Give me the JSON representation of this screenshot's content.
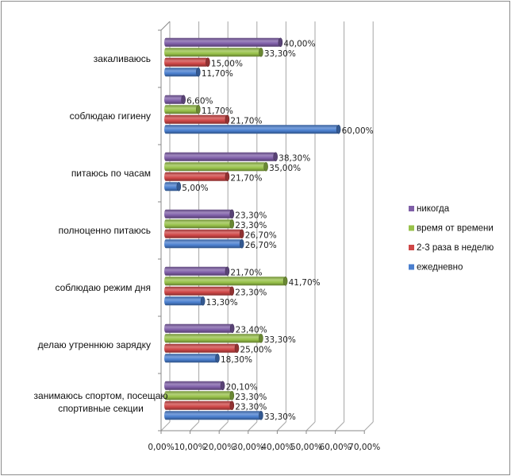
{
  "chart_data": {
    "type": "bar",
    "orientation": "horizontal",
    "style": "3d-cylinder",
    "title": "",
    "xlabel": "",
    "ylabel": "",
    "xlim": [
      0,
      70
    ],
    "x_ticks": [
      0,
      10,
      20,
      30,
      40,
      50,
      60,
      70
    ],
    "x_tick_labels": [
      "0,00%",
      "10,00%",
      "20,00%",
      "30,00%",
      "40,00%",
      "50,00%",
      "60,00%",
      "70,00%"
    ],
    "grid": true,
    "legend_position": "right",
    "categories": [
      "закаливаюсь",
      "соблюдаю гигиену",
      "питаюсь по часам",
      "полноценно питаюсь",
      "соблюдаю режим дня",
      "делаю утреннюю зарядку",
      "занимаюсь спортом, посещаю спортивные секции"
    ],
    "category_label_lines": [
      [
        "закаливаюсь"
      ],
      [
        "соблюдаю гигиену"
      ],
      [
        "питаюсь по часам"
      ],
      [
        "полноценно питаюсь"
      ],
      [
        "соблюдаю режим дня"
      ],
      [
        "делаю утреннюю зарядку"
      ],
      [
        "занимаюсь спортом, посещаю",
        "спортивные секции"
      ]
    ],
    "series": [
      {
        "name": "никогда",
        "color": "#7f5fa8",
        "values": [
          40.0,
          6.6,
          38.3,
          23.3,
          21.7,
          23.4,
          20.1
        ],
        "labels": [
          "40,00%",
          "6,60%",
          "38,30%",
          "23,30%",
          "21,70%",
          "23,40%",
          "20,10%"
        ]
      },
      {
        "name": "время от времени",
        "color": "#98c24a",
        "values": [
          33.3,
          11.7,
          35.0,
          23.3,
          41.7,
          33.3,
          23.3
        ],
        "labels": [
          "33,30%",
          "11,70%",
          "35,00%",
          "23,30%",
          "41,70%",
          "33,30%",
          "23,30%"
        ]
      },
      {
        "name": "2-3 раза в неделю",
        "color": "#cf4747",
        "values": [
          15.0,
          21.7,
          21.7,
          26.7,
          23.3,
          25.0,
          23.3
        ],
        "labels": [
          "15,00%",
          "21,70%",
          "21,70%",
          "26,70%",
          "23,30%",
          "25,00%",
          "23,30%"
        ]
      },
      {
        "name": "ежедневно",
        "color": "#4a7fcf",
        "values": [
          11.7,
          60.0,
          5.0,
          26.7,
          13.3,
          18.3,
          33.3
        ],
        "labels": [
          "11,70%",
          "60,00%",
          "5,00%",
          "26,70%",
          "13,30%",
          "18,30%",
          "33,30%"
        ]
      }
    ]
  }
}
